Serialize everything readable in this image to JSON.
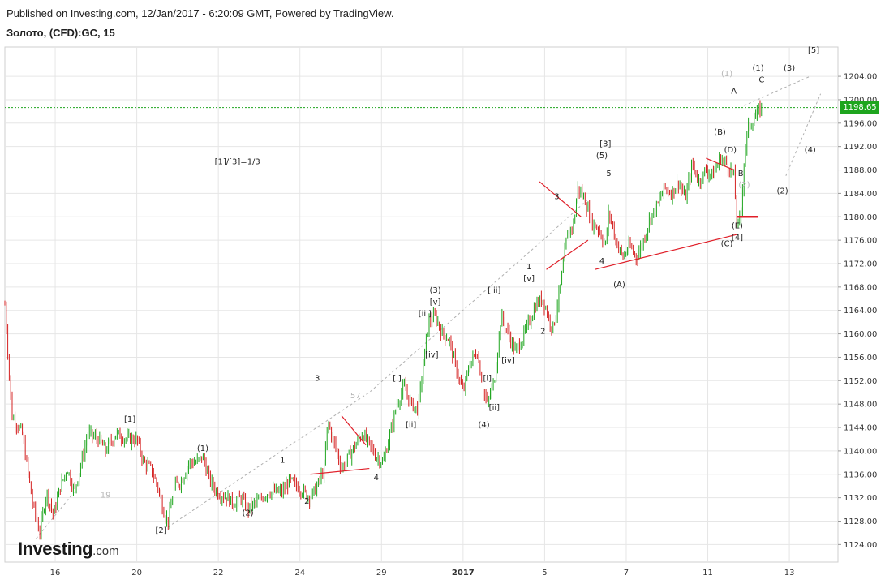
{
  "header": {
    "published": "Published on Investing.com, 12/Jan/2017 - 6:20:09 GMT, Powered by TradingView.",
    "symbol": "Золото, (CFD):GC, 15"
  },
  "logo": {
    "brand": "Investing",
    "domain": ".com"
  },
  "colors": {
    "up": "#1ea51e",
    "down": "#d42020",
    "trend": "#e0202a",
    "dash": "#b0b0b0",
    "grid": "#e6e6e6",
    "last": "#1ea51e"
  },
  "chart_data": {
    "type": "candlestick",
    "ylim": [
      1121,
      1209
    ],
    "y_ticks": [
      1124,
      1128,
      1132,
      1136,
      1140,
      1144,
      1148,
      1152,
      1156,
      1160,
      1164,
      1168,
      1172,
      1176,
      1180,
      1184,
      1188,
      1192,
      1196,
      1200,
      1204
    ],
    "y_tick_labels": [
      "1124.00",
      "1128.00",
      "1132.00",
      "1136.00",
      "1140.00",
      "1144.00",
      "1148.00",
      "1152.00",
      "1156.00",
      "1160.00",
      "1164.00",
      "1168.00",
      "1172.00",
      "1176.00",
      "1180.00",
      "1184.00",
      "1188.00",
      "1192.00",
      "1196.00",
      "1200.00",
      "1204.00"
    ],
    "x_ticks": [
      {
        "label": "16",
        "t": 14.5
      },
      {
        "label": "20",
        "t": 38
      },
      {
        "label": "22",
        "t": 61.5
      },
      {
        "label": "24",
        "t": 85
      },
      {
        "label": "29",
        "t": 108.5
      },
      {
        "label": "2017",
        "t": 132
      },
      {
        "label": "5",
        "t": 155.5
      },
      {
        "label": "7",
        "t": 179
      },
      {
        "label": "11",
        "t": 202.5
      },
      {
        "label": "13",
        "t": 226
      }
    ],
    "last_price": 1198.65,
    "last_price_label": "1198.65",
    "price_path": [
      [
        0,
        1165
      ],
      [
        2,
        1146
      ],
      [
        5,
        1143
      ],
      [
        8,
        1131
      ],
      [
        10,
        1126
      ],
      [
        12,
        1133
      ],
      [
        14,
        1129
      ],
      [
        16,
        1134
      ],
      [
        18,
        1137
      ],
      [
        20,
        1133
      ],
      [
        22,
        1138
      ],
      [
        24,
        1143
      ],
      [
        27,
        1142
      ],
      [
        29,
        1140
      ],
      [
        32,
        1143
      ],
      [
        35,
        1142
      ],
      [
        38,
        1142
      ],
      [
        40,
        1138
      ],
      [
        42,
        1137
      ],
      [
        44,
        1134
      ],
      [
        46,
        1129
      ],
      [
        47,
        1128
      ],
      [
        49,
        1134
      ],
      [
        51,
        1135
      ],
      [
        53,
        1138
      ],
      [
        55,
        1138
      ],
      [
        57,
        1139
      ],
      [
        59,
        1135
      ],
      [
        61,
        1133
      ],
      [
        64,
        1132
      ],
      [
        66,
        1131
      ],
      [
        68,
        1132
      ],
      [
        70,
        1130
      ],
      [
        72,
        1131
      ],
      [
        74,
        1132
      ],
      [
        76,
        1133
      ],
      [
        78,
        1133
      ],
      [
        80,
        1133
      ],
      [
        82,
        1135
      ],
      [
        84,
        1134
      ],
      [
        86,
        1133
      ],
      [
        88,
        1132
      ],
      [
        90,
        1134
      ],
      [
        92,
        1137
      ],
      [
        93,
        1145
      ],
      [
        95,
        1141
      ],
      [
        97,
        1137
      ],
      [
        99,
        1139
      ],
      [
        101,
        1141
      ],
      [
        103,
        1143
      ],
      [
        105,
        1141
      ],
      [
        107,
        1139
      ],
      [
        109,
        1138
      ],
      [
        111,
        1143
      ],
      [
        113,
        1148
      ],
      [
        115,
        1151
      ],
      [
        117,
        1148
      ],
      [
        119,
        1147
      ],
      [
        121,
        1157
      ],
      [
        122,
        1162
      ],
      [
        124,
        1163
      ],
      [
        126,
        1160
      ],
      [
        128,
        1159
      ],
      [
        130,
        1154
      ],
      [
        132,
        1150
      ],
      [
        134,
        1155
      ],
      [
        136,
        1157
      ],
      [
        138,
        1150
      ],
      [
        139,
        1148
      ],
      [
        141,
        1152
      ],
      [
        143,
        1163
      ],
      [
        145,
        1160
      ],
      [
        147,
        1157
      ],
      [
        149,
        1159
      ],
      [
        151,
        1162
      ],
      [
        153,
        1165
      ],
      [
        155,
        1166
      ],
      [
        157,
        1162
      ],
      [
        158,
        1161
      ],
      [
        160,
        1168
      ],
      [
        162,
        1177
      ],
      [
        164,
        1179
      ],
      [
        165,
        1185
      ],
      [
        167,
        1183
      ],
      [
        169,
        1179
      ],
      [
        171,
        1178
      ],
      [
        173,
        1175
      ],
      [
        174,
        1181
      ],
      [
        176,
        1176
      ],
      [
        178,
        1173
      ],
      [
        180,
        1175
      ],
      [
        182,
        1173
      ],
      [
        184,
        1176
      ],
      [
        186,
        1180
      ],
      [
        188,
        1182
      ],
      [
        190,
        1185
      ],
      [
        192,
        1184
      ],
      [
        194,
        1186
      ],
      [
        196,
        1183
      ],
      [
        198,
        1189
      ],
      [
        200,
        1186
      ],
      [
        202,
        1188
      ],
      [
        204,
        1187
      ],
      [
        206,
        1190
      ],
      [
        208,
        1189
      ],
      [
        210,
        1187
      ],
      [
        211,
        1178
      ],
      [
        212,
        1180
      ],
      [
        213,
        1190
      ],
      [
        214,
        1195
      ],
      [
        216,
        1197
      ],
      [
        218,
        1198.65
      ]
    ],
    "dashed_lines": [
      [
        [
          47,
          1127
        ],
        [
          105,
          1150
        ],
        [
          155,
          1176
        ],
        [
          168,
          1183
        ]
      ],
      [
        [
          9,
          1125
        ],
        [
          20,
          1133
        ]
      ],
      [
        [
          213,
          1199
        ],
        [
          232,
          1204
        ]
      ],
      [
        [
          225,
          1187
        ],
        [
          235,
          1201
        ]
      ]
    ],
    "trend_lines": [
      [
        [
          154,
          1186
        ],
        [
          166,
          1180
        ]
      ],
      [
        [
          156,
          1171
        ],
        [
          168,
          1176
        ]
      ],
      [
        [
          88,
          1136
        ],
        [
          105,
          1137
        ]
      ],
      [
        [
          97,
          1146
        ],
        [
          104,
          1141
        ]
      ],
      [
        [
          170,
          1171
        ],
        [
          211,
          1177
        ]
      ],
      [
        [
          202,
          1190
        ],
        [
          210,
          1188
        ]
      ],
      [
        [
          211,
          1180
        ],
        [
          217,
          1180
        ]
      ]
    ],
    "annotations": [
      {
        "text": "[1]/[3]=1/3",
        "t": 67,
        "y": 1189,
        "grey": false
      },
      {
        "text": "[1]",
        "t": 36,
        "y": 1145,
        "grey": false
      },
      {
        "text": "19",
        "t": 29,
        "y": 1132,
        "grey": true
      },
      {
        "text": "[2]",
        "t": 45,
        "y": 1126,
        "grey": false
      },
      {
        "text": "(1)",
        "t": 57,
        "y": 1140,
        "grey": false
      },
      {
        "text": "(2)",
        "t": 70,
        "y": 1129,
        "grey": false
      },
      {
        "text": "1",
        "t": 80,
        "y": 1138,
        "grey": false
      },
      {
        "text": "2",
        "t": 87,
        "y": 1131,
        "grey": false
      },
      {
        "text": "3",
        "t": 90,
        "y": 1152,
        "grey": false
      },
      {
        "text": "57",
        "t": 101,
        "y": 1149,
        "grey": true
      },
      {
        "text": "4",
        "t": 107,
        "y": 1135,
        "grey": false
      },
      {
        "text": "[i]",
        "t": 113,
        "y": 1152,
        "grey": false
      },
      {
        "text": "[ii]",
        "t": 117,
        "y": 1144,
        "grey": false
      },
      {
        "text": "(3)",
        "t": 124,
        "y": 1167,
        "grey": false
      },
      {
        "text": "[v]",
        "t": 124,
        "y": 1165,
        "grey": false
      },
      {
        "text": "[iii]",
        "t": 121,
        "y": 1163,
        "grey": false
      },
      {
        "text": "[iv]",
        "t": 123,
        "y": 1156,
        "grey": false
      },
      {
        "text": "[iii]",
        "t": 141,
        "y": 1167,
        "grey": false
      },
      {
        "text": "[i]",
        "t": 139,
        "y": 1152,
        "grey": false
      },
      {
        "text": "[ii]",
        "t": 141,
        "y": 1147,
        "grey": false
      },
      {
        "text": "(4)",
        "t": 138,
        "y": 1144,
        "grey": false
      },
      {
        "text": "[iv]",
        "t": 145,
        "y": 1155,
        "grey": false
      },
      {
        "text": "1",
        "t": 151,
        "y": 1171,
        "grey": false
      },
      {
        "text": "[v]",
        "t": 151,
        "y": 1169,
        "grey": false
      },
      {
        "text": "2",
        "t": 155,
        "y": 1160,
        "grey": false
      },
      {
        "text": "3",
        "t": 159,
        "y": 1183,
        "grey": false
      },
      {
        "text": "[3]",
        "t": 173,
        "y": 1192,
        "grey": false
      },
      {
        "text": "(5)",
        "t": 172,
        "y": 1190,
        "grey": false
      },
      {
        "text": "5",
        "t": 174,
        "y": 1187,
        "grey": false
      },
      {
        "text": "4",
        "t": 172,
        "y": 1172,
        "grey": false
      },
      {
        "text": "(A)",
        "t": 177,
        "y": 1168,
        "grey": false
      },
      {
        "text": "(B)",
        "t": 206,
        "y": 1194,
        "grey": false
      },
      {
        "text": "(D)",
        "t": 209,
        "y": 1191,
        "grey": false
      },
      {
        "text": "B",
        "t": 212,
        "y": 1187,
        "grey": false
      },
      {
        "text": "(2)",
        "t": 213,
        "y": 1185,
        "grey": true
      },
      {
        "text": "(E)",
        "t": 211,
        "y": 1178,
        "grey": false
      },
      {
        "text": "[4]",
        "t": 211,
        "y": 1176,
        "grey": false
      },
      {
        "text": "(C)",
        "t": 208,
        "y": 1175,
        "grey": false
      },
      {
        "text": "A",
        "t": 210,
        "y": 1201,
        "grey": false
      },
      {
        "text": "(1)",
        "t": 208,
        "y": 1204,
        "grey": true
      },
      {
        "text": "(1)",
        "t": 217,
        "y": 1205,
        "grey": false
      },
      {
        "text": "C",
        "t": 218,
        "y": 1203,
        "grey": false
      },
      {
        "text": "(3)",
        "t": 226,
        "y": 1205,
        "grey": false
      },
      {
        "text": "[5]",
        "t": 233,
        "y": 1208,
        "grey": false
      },
      {
        "text": "(4)",
        "t": 232,
        "y": 1191,
        "grey": false
      },
      {
        "text": "(2)",
        "t": 224,
        "y": 1184,
        "grey": false
      }
    ]
  }
}
